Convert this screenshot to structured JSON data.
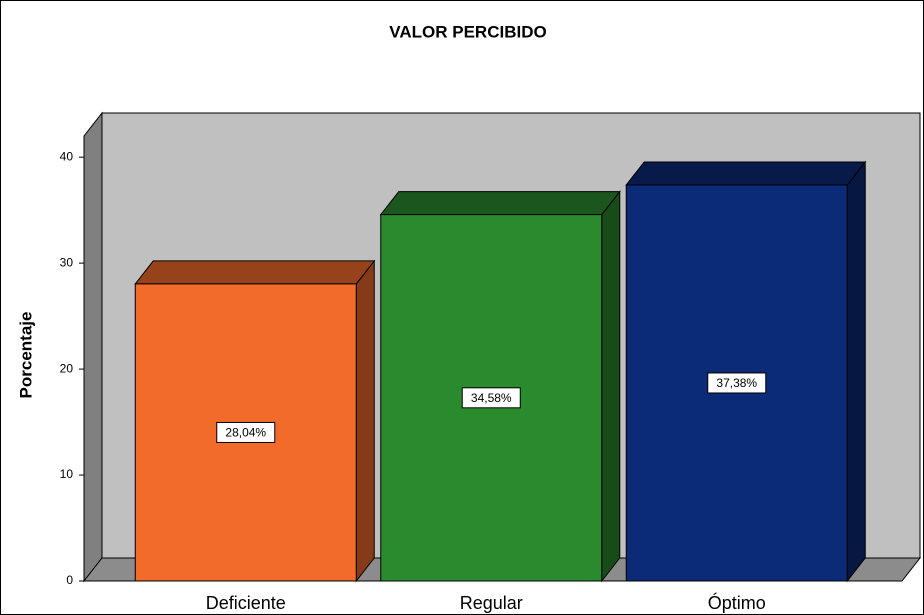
{
  "chart_data": {
    "type": "bar3d",
    "title": "VALOR PERCIBIDO",
    "y_label": "Porcentaje",
    "categories": [
      "Deficiente",
      "Regular",
      "Óptimo"
    ],
    "values": [
      28.04,
      34.58,
      37.38
    ],
    "value_labels": [
      "28,04%",
      "34,58%",
      "37,38%"
    ],
    "colors": [
      "#f26b2b",
      "#2a8a2e",
      "#0b2a78"
    ],
    "ylim": [
      0,
      42
    ],
    "yticks": [
      0,
      10,
      20,
      30,
      40
    ],
    "grid": false
  }
}
